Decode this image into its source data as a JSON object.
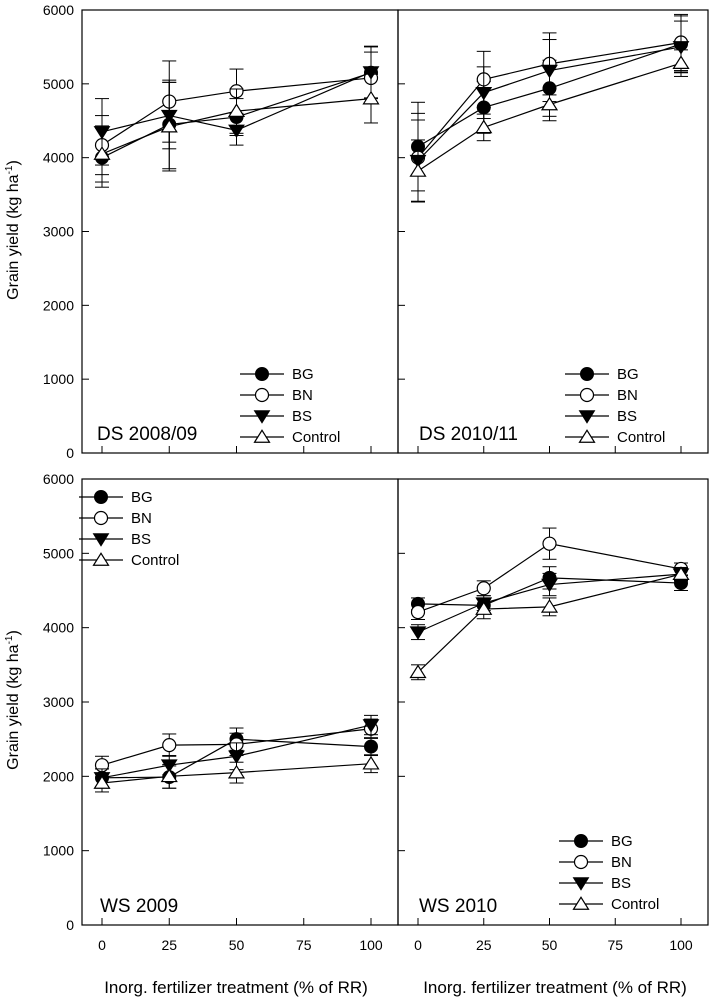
{
  "figure": {
    "ylabel_main": "Grain yield (kg ha",
    "ylabel_sup": "-1",
    "ylabel_tail": ")",
    "xlabel": "Inorg. fertilizer treatment (% of RR)"
  },
  "legend_labels": [
    "BG",
    "BN",
    "BS",
    "Control"
  ],
  "chart_data": [
    {
      "type": "line",
      "title": "DS 2008/09",
      "x": [
        0,
        25,
        50,
        100
      ],
      "xticks": [
        0,
        25,
        50,
        75,
        100
      ],
      "ylim": [
        0,
        6000
      ],
      "yticks": [
        0,
        1000,
        2000,
        3000,
        4000,
        5000,
        6000
      ],
      "xlabel": "Inorg. fertilizer treatment (% of RR)",
      "ylabel": "Grain yield (kg ha-1)",
      "legend": "bottom-right",
      "series": [
        {
          "name": "BG",
          "values": [
            4000,
            4450,
            4550,
            5150
          ],
          "errors": [
            400,
            600,
            250,
            350
          ]
        },
        {
          "name": "BN",
          "values": [
            4170,
            4760,
            4900,
            5080
          ],
          "errors": [
            400,
            550,
            300,
            350
          ]
        },
        {
          "name": "BS",
          "values": [
            4350,
            4570,
            4370,
            5160
          ],
          "errors": [
            450,
            450,
            200,
            350
          ]
        },
        {
          "name": "Control",
          "values": [
            4050,
            4420,
            4630,
            4800
          ],
          "errors": [
            380,
            600,
            300,
            330
          ]
        }
      ]
    },
    {
      "type": "line",
      "title": "DS 2010/11",
      "x": [
        0,
        25,
        50,
        100
      ],
      "xticks": [
        0,
        25,
        50,
        75,
        100
      ],
      "ylim": [
        0,
        6000
      ],
      "yticks": [
        0,
        1000,
        2000,
        3000,
        4000,
        5000,
        6000
      ],
      "xlabel": "Inorg. fertilizer treatment (% of RR)",
      "ylabel": "",
      "legend": "bottom-right",
      "series": [
        {
          "name": "BG",
          "values": [
            4150,
            4680,
            4940,
            5540
          ],
          "errors": [
            600,
            350,
            380,
            380
          ]
        },
        {
          "name": "BN",
          "values": [
            4000,
            5060,
            5270,
            5560
          ],
          "errors": [
            600,
            380,
            420,
            380
          ]
        },
        {
          "name": "BS",
          "values": [
            3960,
            4880,
            5180,
            5500
          ],
          "errors": [
            550,
            350,
            420,
            350
          ]
        },
        {
          "name": "Control",
          "values": [
            3820,
            4410,
            4720,
            5280
          ],
          "errors": [
            420,
            180,
            220,
            180
          ]
        }
      ]
    },
    {
      "type": "line",
      "title": "WS 2009",
      "x": [
        0,
        25,
        50,
        100
      ],
      "xticks": [
        0,
        25,
        50,
        75,
        100
      ],
      "ylim": [
        0,
        6000
      ],
      "yticks": [
        0,
        1000,
        2000,
        3000,
        4000,
        5000,
        6000
      ],
      "xlabel": "Inorg. fertilizer treatment (% of RR)",
      "ylabel": "Grain yield (kg ha-1)",
      "legend": "top-left",
      "series": [
        {
          "name": "BG",
          "values": [
            1980,
            1990,
            2500,
            2400
          ],
          "errors": [
            120,
            150,
            150,
            120
          ]
        },
        {
          "name": "BN",
          "values": [
            2150,
            2420,
            2430,
            2640
          ],
          "errors": [
            120,
            150,
            150,
            130
          ]
        },
        {
          "name": "BS",
          "values": [
            1980,
            2150,
            2270,
            2690
          ],
          "errors": [
            120,
            130,
            180,
            130
          ]
        },
        {
          "name": "Control",
          "values": [
            1910,
            2000,
            2050,
            2170
          ],
          "errors": [
            120,
            160,
            140,
            120
          ]
        }
      ]
    },
    {
      "type": "line",
      "title": "WS 2010",
      "x": [
        0,
        25,
        50,
        100
      ],
      "xticks": [
        0,
        25,
        50,
        75,
        100
      ],
      "ylim": [
        0,
        6000
      ],
      "yticks": [
        0,
        1000,
        2000,
        3000,
        4000,
        5000,
        6000
      ],
      "xlabel": "Inorg. fertilizer treatment (% of RR)",
      "ylabel": "",
      "legend": "bottom-right",
      "series": [
        {
          "name": "BG",
          "values": [
            4320,
            4300,
            4670,
            4600
          ],
          "errors": [
            80,
            100,
            150,
            100
          ]
        },
        {
          "name": "BN",
          "values": [
            4210,
            4530,
            5130,
            4790
          ],
          "errors": [
            100,
            100,
            210,
            80
          ]
        },
        {
          "name": "BS",
          "values": [
            3940,
            4330,
            4580,
            4720
          ],
          "errors": [
            100,
            100,
            150,
            80
          ]
        },
        {
          "name": "Control",
          "values": [
            3400,
            4250,
            4280,
            4720
          ],
          "errors": [
            100,
            130,
            120,
            90
          ]
        }
      ]
    }
  ]
}
